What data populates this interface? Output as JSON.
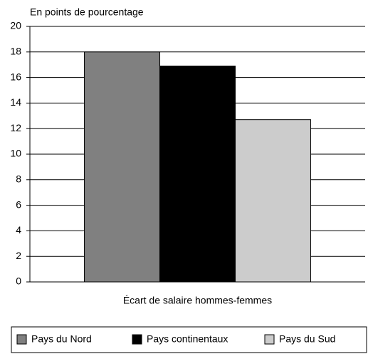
{
  "chart_data": {
    "type": "bar",
    "y_label": "En points de pourcentage",
    "categories": [
      "Écart de salaire hommes-femmes"
    ],
    "series": [
      {
        "name": "Pays du Nord",
        "color": "#808080",
        "values": [
          18
        ]
      },
      {
        "name": "Pays continentaux",
        "color": "#000000",
        "values": [
          16.9
        ]
      },
      {
        "name": "Pays du Sud",
        "color": "#cccccc",
        "values": [
          12.7
        ]
      }
    ],
    "ylim": [
      0,
      20
    ],
    "yticks": [
      0,
      2,
      4,
      6,
      8,
      10,
      12,
      14,
      16,
      18,
      20
    ],
    "grid": true,
    "legend": "bottom"
  }
}
